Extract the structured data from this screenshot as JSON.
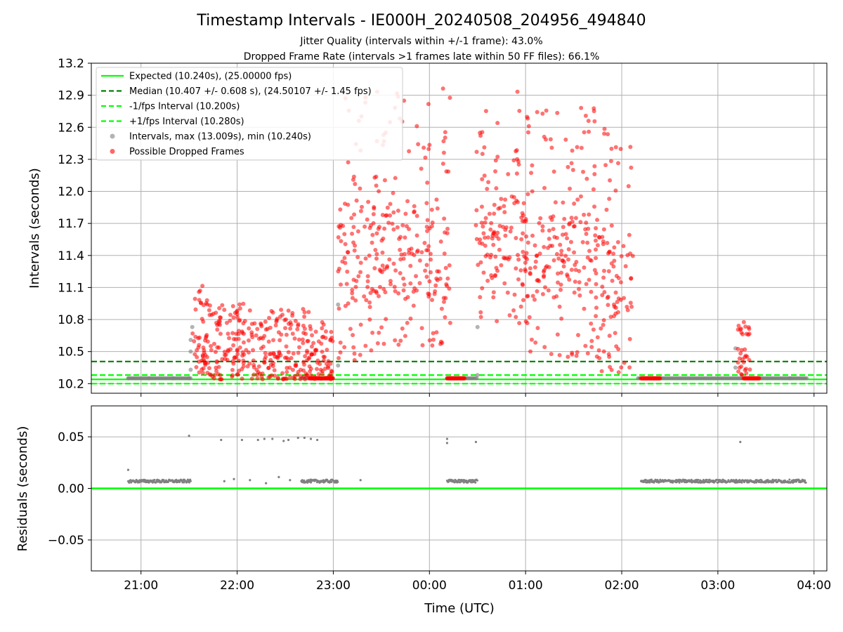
{
  "title": "Timestamp Intervals - IE000H_20240508_204956_494840",
  "subtitle_1": "Jitter Quality (intervals within +/-1 frame): 43.0%",
  "subtitle_2": "Dropped Frame Rate (intervals >1 frames late within 50 FF files): 66.1%",
  "colors": {
    "expected": "#00ff00",
    "median": "#008000",
    "fps_interval": "#00ff00",
    "intervals": "#808080",
    "dropped": "#ff0000",
    "grid": "#b0b0b0"
  },
  "chart_data": [
    {
      "type": "scatter",
      "ylabel": "Intervals (seconds)",
      "xlabel": "",
      "xlim": [
        "2024-05-08 20:29",
        "2024-05-09 04:08"
      ],
      "ylim": [
        10.11,
        13.2
      ],
      "grid": true,
      "yticks": [
        "10.2",
        "10.5",
        "10.8",
        "11.1",
        "11.4",
        "11.7",
        "12.0",
        "12.3",
        "12.6",
        "12.9",
        "13.2"
      ],
      "legend_position": "top-left",
      "legend": [
        "Expected (10.240s), (25.00000 fps)",
        "Median (10.407 +/- 0.608 s), (24.50107 +/- 1.45 fps)",
        "-1/fps Interval (10.200s)",
        "+1/fps Interval (10.280s)",
        "Intervals, max (13.009s), min (10.240s)",
        "Possible Dropped Frames"
      ],
      "reference_lines": [
        {
          "name": "Expected",
          "y": 10.24,
          "style": "solid"
        },
        {
          "name": "Median",
          "y": 10.407,
          "style": "dashed"
        },
        {
          "name": "-1/fps Interval",
          "y": 10.2,
          "style": "dashed"
        },
        {
          "name": "+1/fps Interval",
          "y": 10.28,
          "style": "dashed"
        }
      ],
      "series": [
        {
          "name": "Intervals, max (13.009s), min (10.240s)",
          "points": [
            [
              "2024-05-08 20:52",
              10.25
            ],
            [
              "2024-05-08 21:05",
              10.25
            ],
            [
              "2024-05-08 21:20",
              10.25
            ],
            [
              "2024-05-08 21:30",
              10.25
            ],
            [
              "2024-05-08 21:31",
              10.33
            ],
            [
              "2024-05-08 21:31",
              10.5
            ],
            [
              "2024-05-08 21:31",
              10.61
            ],
            [
              "2024-05-08 21:32",
              10.73
            ],
            [
              "2024-05-08 23:03",
              10.94
            ],
            [
              "2024-05-08 23:03",
              10.37
            ],
            [
              "2024-05-09 00:30",
              10.28
            ],
            [
              "2024-05-09 00:30",
              10.73
            ],
            [
              "2024-05-09 03:11",
              10.53
            ],
            [
              "2024-05-09 03:11",
              10.35
            ],
            [
              "2024-05-09 03:45",
              10.25
            ]
          ]
        },
        {
          "name": "Possible Dropped Frames",
          "clusters": [
            {
              "from": "2024-05-08 21:32",
              "to": "2024-05-08 21:42",
              "y_min": 10.3,
              "y_max": 11.12
            },
            {
              "from": "2024-05-08 21:40",
              "to": "2024-05-08 22:10",
              "y_min": 10.24,
              "y_max": 10.95
            },
            {
              "from": "2024-05-08 22:10",
              "to": "2024-05-08 22:45",
              "y_min": 10.24,
              "y_max": 10.9
            },
            {
              "from": "2024-05-08 22:45",
              "to": "2024-05-08 23:00",
              "y_min": 10.24,
              "y_max": 10.8
            },
            {
              "from": "2024-05-08 23:03",
              "to": "2024-05-08 23:25",
              "y_min": 10.4,
              "y_max": 12.98
            },
            {
              "from": "2024-05-08 23:25",
              "to": "2024-05-09 00:13",
              "y_min": 10.55,
              "y_max": 12.98
            },
            {
              "from": "2024-05-09 00:29",
              "to": "2024-05-09 01:03",
              "y_min": 10.75,
              "y_max": 12.95
            },
            {
              "from": "2024-05-09 01:00",
              "to": "2024-05-09 01:45",
              "y_min": 10.45,
              "y_max": 12.85
            },
            {
              "from": "2024-05-09 01:45",
              "to": "2024-05-09 02:07",
              "y_min": 10.3,
              "y_max": 12.7
            },
            {
              "from": "2024-05-09 03:12",
              "to": "2024-05-09 03:20",
              "y_min": 10.28,
              "y_max": 10.78
            }
          ],
          "flat_runs": [
            {
              "from": "2024-05-08 22:45",
              "to": "2024-05-08 23:00",
              "y": 10.25
            },
            {
              "from": "2024-05-09 00:11",
              "to": "2024-05-09 00:22",
              "y": 10.25
            },
            {
              "from": "2024-05-09 02:12",
              "to": "2024-05-09 02:24",
              "y": 10.25
            },
            {
              "from": "2024-05-09 03:16",
              "to": "2024-05-09 03:26",
              "y": 10.25
            }
          ]
        }
      ]
    },
    {
      "type": "scatter",
      "ylabel": "Residuals (seconds)",
      "xlabel": "Time (UTC)",
      "xlim": [
        "2024-05-08 20:29",
        "2024-05-09 04:08"
      ],
      "ylim": [
        -0.08,
        0.08
      ],
      "grid": true,
      "yticks": [
        "−0.05",
        "0.00",
        "0.05"
      ],
      "xticks": [
        "21:00",
        "22:00",
        "23:00",
        "00:00",
        "01:00",
        "02:00",
        "03:00",
        "04:00"
      ],
      "reference_lines": [
        {
          "name": "Zero",
          "y": 0.0,
          "style": "solid"
        }
      ],
      "series": [
        {
          "name": "Residuals",
          "bands": [
            {
              "from": "2024-05-08 20:52",
              "to": "2024-05-08 21:31",
              "y": 0.007
            },
            {
              "from": "2024-05-08 22:40",
              "to": "2024-05-08 23:03",
              "y": 0.007
            },
            {
              "from": "2024-05-09 00:11",
              "to": "2024-05-09 00:30",
              "y": 0.007
            },
            {
              "from": "2024-05-09 02:12",
              "to": "2024-05-09 03:55",
              "y": 0.007
            }
          ],
          "points": [
            [
              "2024-05-08 20:52",
              0.018
            ],
            [
              "2024-05-08 21:30",
              0.051
            ],
            [
              "2024-05-08 21:50",
              0.047
            ],
            [
              "2024-05-08 22:03",
              0.047
            ],
            [
              "2024-05-08 22:13",
              0.047
            ],
            [
              "2024-05-08 22:17",
              0.048
            ],
            [
              "2024-05-08 22:22",
              0.048
            ],
            [
              "2024-05-08 22:29",
              0.046
            ],
            [
              "2024-05-08 22:32",
              0.047
            ],
            [
              "2024-05-08 22:38",
              0.049
            ],
            [
              "2024-05-08 22:42",
              0.049
            ],
            [
              "2024-05-08 22:46",
              0.048
            ],
            [
              "2024-05-08 22:50",
              0.047
            ],
            [
              "2024-05-09 00:11",
              0.048
            ],
            [
              "2024-05-09 00:11",
              0.044
            ],
            [
              "2024-05-09 00:29",
              0.045
            ],
            [
              "2024-05-09 03:14",
              0.045
            ],
            [
              "2024-05-08 21:52",
              0.007
            ],
            [
              "2024-05-08 21:58",
              0.009
            ],
            [
              "2024-05-08 22:08",
              0.008
            ],
            [
              "2024-05-08 22:18",
              0.005
            ],
            [
              "2024-05-08 22:26",
              0.011
            ],
            [
              "2024-05-08 22:33",
              0.008
            ],
            [
              "2024-05-08 23:17",
              0.008
            ]
          ]
        }
      ]
    }
  ]
}
